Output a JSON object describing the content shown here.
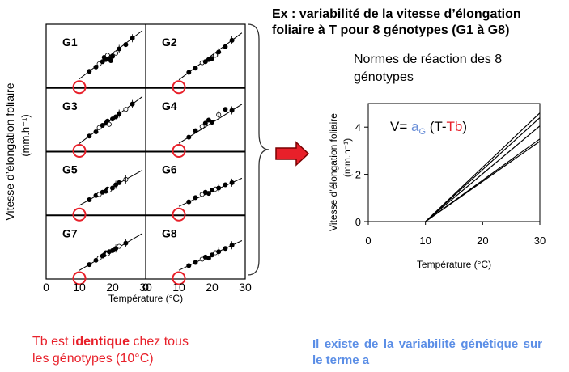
{
  "slide": {
    "title": "Ex : variabilité de la vitesse d’élongation foliaire à T pour 8 génotypes (G1 à G8)",
    "reaction_title": "Normes de réaction des 8 génotypes",
    "note_left": {
      "before": "Tb est ",
      "bold": "identique",
      "after_line1": " chez tous",
      "line2": " les génotypes (10°C)"
    },
    "note_right": "Il existe de la variabilité génétique sur le terme a"
  },
  "colors": {
    "circle": "#e8202a",
    "arrow_fill": "#e8202a",
    "arrow_stroke": "#7a0000",
    "note_left": "#e8202a",
    "note_right": "#5b8ee6",
    "formula_sub": "#6a8fd8",
    "formula_tb": "#e8202a"
  },
  "chart_data": [
    {
      "type": "scatter",
      "layout": "small-multiples 4 rows x 2 columns",
      "ylabel_line1": "Vitesse d’élongation foliaire",
      "ylabel_line2": "(mm.h⁻¹)",
      "xlabel": "Température (°C)",
      "xlim": [
        0,
        30
      ],
      "xticks": [
        0,
        10,
        20,
        30
      ],
      "highlight_x": 10,
      "panels": [
        {
          "name": "G1",
          "x": [
            13,
            15,
            16,
            17,
            17.5,
            18,
            18.5,
            19,
            19.5,
            20,
            21,
            22,
            24,
            26
          ],
          "y": [
            0.55,
            0.75,
            0.9,
            1.0,
            1.2,
            1.1,
            1.3,
            1.15,
            1.05,
            1.25,
            1.4,
            1.6,
            1.8,
            2.1
          ]
        },
        {
          "name": "G2",
          "x": [
            13,
            15,
            17,
            18,
            19,
            20,
            21,
            22,
            24,
            26
          ],
          "y": [
            0.5,
            0.7,
            0.95,
            1.0,
            1.1,
            1.15,
            1.3,
            1.45,
            1.7,
            2.0
          ]
        },
        {
          "name": "G3",
          "x": [
            13,
            15,
            16,
            17,
            18,
            18.5,
            19,
            20,
            21,
            22,
            24,
            26
          ],
          "y": [
            0.5,
            0.7,
            0.9,
            1.0,
            1.1,
            1.2,
            1.05,
            1.3,
            1.4,
            1.55,
            1.75,
            2.0
          ]
        },
        {
          "name": "G4",
          "x": [
            13,
            15,
            17,
            18,
            19,
            20,
            22,
            24,
            26
          ],
          "y": [
            0.45,
            0.75,
            0.95,
            1.1,
            1.25,
            1.15,
            1.5,
            1.75,
            1.7
          ]
        },
        {
          "name": "G5",
          "x": [
            13,
            15,
            16,
            17,
            18,
            18.5,
            19,
            20,
            21,
            22,
            24
          ],
          "y": [
            0.5,
            0.7,
            0.75,
            0.85,
            0.9,
            1.0,
            0.95,
            1.05,
            1.2,
            1.3,
            1.45
          ]
        },
        {
          "name": "G6",
          "x": [
            13,
            15,
            17,
            18,
            19,
            20,
            21,
            22,
            24,
            26
          ],
          "y": [
            0.4,
            0.6,
            0.75,
            0.85,
            0.8,
            0.95,
            1.0,
            1.05,
            1.2,
            1.3
          ]
        },
        {
          "name": "G7",
          "x": [
            13,
            15,
            16,
            17,
            17.5,
            18,
            18.5,
            19,
            20,
            21,
            22,
            24
          ],
          "y": [
            0.45,
            0.65,
            0.75,
            0.85,
            0.9,
            1.0,
            0.95,
            1.05,
            1.1,
            1.2,
            1.3,
            1.45
          ]
        },
        {
          "name": "G8",
          "x": [
            13,
            15,
            17,
            18,
            19,
            20,
            21,
            22,
            24,
            26
          ],
          "y": [
            0.4,
            0.55,
            0.7,
            0.8,
            0.75,
            0.9,
            1.0,
            1.05,
            1.2,
            1.35
          ]
        }
      ]
    },
    {
      "type": "line",
      "ylabel_line1": "Vitesse d’élongation foliaire",
      "ylabel_line2": "(mm.h⁻¹)",
      "xlabel": "Température (°C)",
      "xlim": [
        0,
        30
      ],
      "ylim": [
        0,
        5
      ],
      "xticks": [
        0,
        10,
        20,
        30
      ],
      "yticks": [
        0,
        2,
        4
      ],
      "formula": {
        "prefix": "V= ",
        "a": "a",
        "sub": "G",
        "open": " (T-",
        "tb": "Tb",
        "close": ")"
      },
      "series": [
        {
          "x": [
            10,
            30
          ],
          "y": [
            0,
            4.6
          ]
        },
        {
          "x": [
            10,
            30
          ],
          "y": [
            0,
            4.4
          ]
        },
        {
          "x": [
            10,
            30
          ],
          "y": [
            0,
            4.05
          ]
        },
        {
          "x": [
            10,
            30
          ],
          "y": [
            0,
            3.5
          ]
        },
        {
          "x": [
            10,
            30
          ],
          "y": [
            0,
            3.4
          ]
        }
      ]
    }
  ]
}
